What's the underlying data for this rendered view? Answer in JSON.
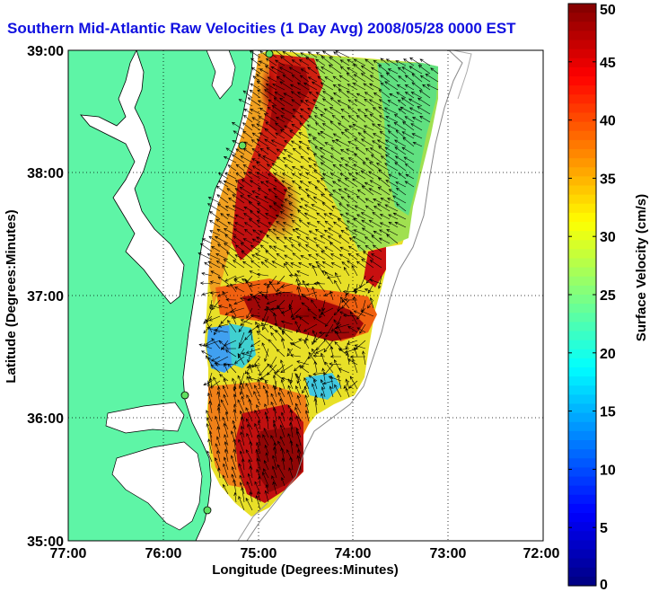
{
  "title": "Southern Mid-Atlantic Raw Velocities (1 Day Avg) 2008/05/28 0000 EST",
  "map": {
    "xlabel": "Longitude (Degrees:Minutes)",
    "ylabel": "Latitude (Degrees:Minutes)",
    "lon_ticks": [
      "77:00",
      "76:00",
      "75:00",
      "74:00",
      "73:00",
      "72:00"
    ],
    "lat_ticks": [
      "39:00",
      "38:00",
      "37:00",
      "36:00",
      "35:00"
    ],
    "lon_range": [
      -77,
      -72
    ],
    "lat_range": [
      35,
      39
    ],
    "grid": "dotted",
    "land_color": "#5ef5a6",
    "ocean_color": "#ffffff",
    "arrow_color": "#000000"
  },
  "colorbar": {
    "label": "Surface Velocity (cm/s)",
    "ticks": [
      "0",
      "5",
      "10",
      "15",
      "20",
      "25",
      "30",
      "35",
      "40",
      "45",
      "50"
    ],
    "range": [
      0,
      50
    ],
    "colormap": "jet"
  },
  "stations": [
    "station-north",
    "station-delmarva",
    "station-virginia",
    "station-hatteras"
  ]
}
